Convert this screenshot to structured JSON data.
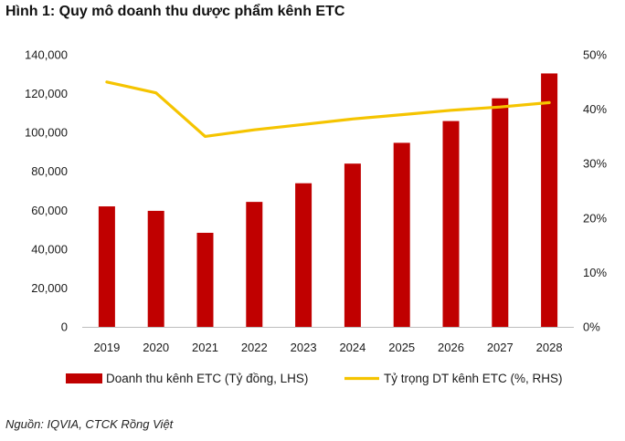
{
  "title": "Hình 1: Quy mô doanh thu dược phẩm kênh ETC",
  "source": "Nguồn: IQVIA, CTCK Rồng Việt",
  "colors": {
    "bar": "#c00000",
    "line": "#f5c400"
  },
  "chart_data": {
    "type": "bar",
    "categories": [
      "2019",
      "2020",
      "2021",
      "2022",
      "2023",
      "2024",
      "2025",
      "2026",
      "2027",
      "2028"
    ],
    "series": [
      {
        "name": "Doanh thu kênh ETC (Tỷ đồng, LHS)",
        "type": "bar",
        "axis": "left",
        "values": [
          62000,
          59700,
          48400,
          64300,
          73900,
          84000,
          94700,
          105900,
          117600,
          130400
        ]
      },
      {
        "name": "Tỷ trọng DT kênh ETC (%, RHS)",
        "type": "line",
        "axis": "right",
        "values": [
          45.0,
          43.0,
          35.0,
          36.2,
          37.2,
          38.2,
          39.0,
          39.8,
          40.4,
          41.2
        ]
      }
    ],
    "y_left": {
      "lim": [
        0,
        140000
      ],
      "ticks": [
        "0",
        "20,000",
        "40,000",
        "60,000",
        "80,000",
        "100,000",
        "120,000",
        "140,000"
      ]
    },
    "y_right": {
      "lim": [
        0,
        50
      ],
      "ticks": [
        "0%",
        "10%",
        "20%",
        "30%",
        "40%",
        "50%"
      ]
    },
    "grid": false,
    "legend": "bottom"
  }
}
